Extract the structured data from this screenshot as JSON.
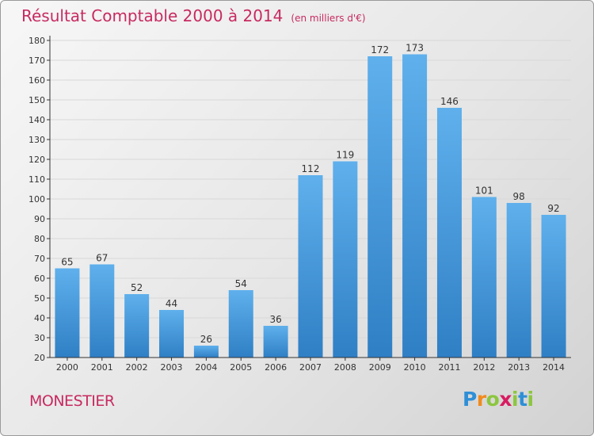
{
  "title": "Résultat Comptable 2000 à 2014",
  "subtitle": "(en milliers d'€)",
  "location": "MONESTIER",
  "logo": "Proxiti",
  "colors": {
    "title": "#c72a61",
    "bar_light": "#5fb0ec",
    "bar_dark": "#2f7fc5"
  },
  "chart_data": {
    "type": "bar",
    "title": "Résultat Comptable 2000 à 2014",
    "subtitle": "(en milliers d'€)",
    "xlabel": "",
    "ylabel": "",
    "categories": [
      "2000",
      "2001",
      "2002",
      "2003",
      "2004",
      "2005",
      "2006",
      "2007",
      "2008",
      "2009",
      "2010",
      "2011",
      "2012",
      "2013",
      "2014"
    ],
    "values": [
      65,
      67,
      52,
      44,
      26,
      54,
      36,
      112,
      119,
      172,
      173,
      146,
      101,
      98,
      92
    ],
    "ylim": [
      20,
      180
    ],
    "yticks": [
      20,
      30,
      40,
      50,
      60,
      70,
      80,
      90,
      100,
      110,
      120,
      130,
      140,
      150,
      160,
      170,
      180
    ],
    "grid": true,
    "legend": "none"
  }
}
